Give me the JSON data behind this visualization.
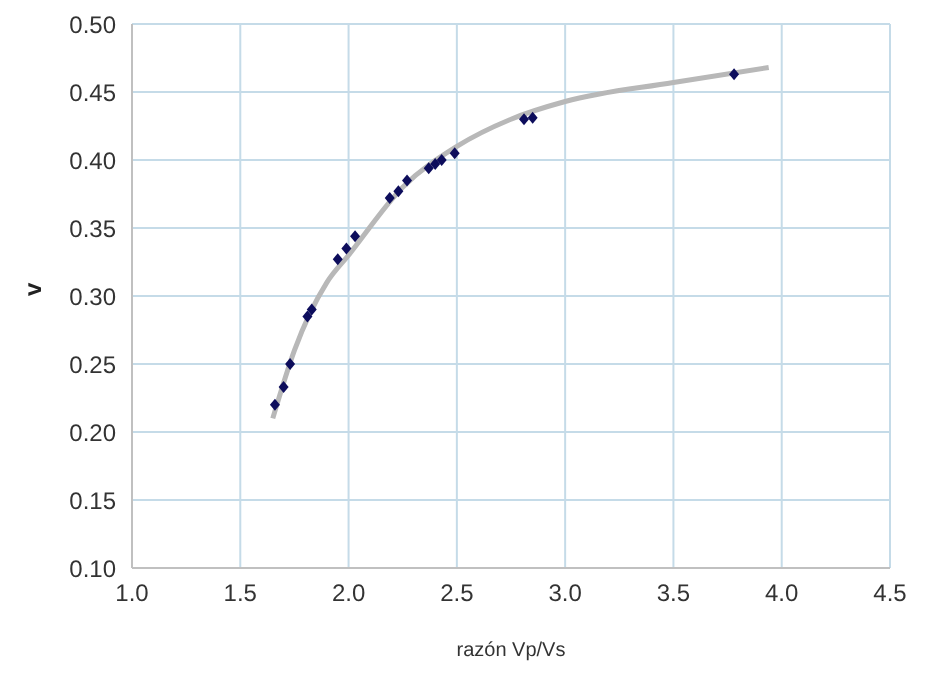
{
  "chart_data": {
    "type": "scatter",
    "xlabel": "razón Vp/Vs",
    "ylabel": "v",
    "xlim": [
      1.0,
      4.5
    ],
    "xticks": [
      {
        "value": 1.0,
        "label": "1.0"
      },
      {
        "value": 1.5,
        "label": "1.5"
      },
      {
        "value": 2.0,
        "label": "2.0"
      },
      {
        "value": 2.5,
        "label": "2.5"
      },
      {
        "value": 3.0,
        "label": "3.0"
      },
      {
        "value": 3.5,
        "label": "3.5"
      },
      {
        "value": 4.0,
        "label": "4.0"
      },
      {
        "value": 4.5,
        "label": "4.5"
      }
    ],
    "ylim": [
      0.1,
      0.5
    ],
    "yticks": [
      {
        "value": 0.1,
        "label": "0.10"
      },
      {
        "value": 0.15,
        "label": "0.15"
      },
      {
        "value": 0.2,
        "label": "0.20"
      },
      {
        "value": 0.25,
        "label": "0.25"
      },
      {
        "value": 0.3,
        "label": "0.30"
      },
      {
        "value": 0.35,
        "label": "0.35"
      },
      {
        "value": 0.4,
        "label": "0.40"
      },
      {
        "value": 0.45,
        "label": "0.45"
      },
      {
        "value": 0.5,
        "label": "0.50"
      }
    ],
    "grid": true,
    "marker": "diamond",
    "series": [
      {
        "color": "#0d0d5c",
        "x": [
          1.66,
          1.7,
          1.73,
          1.81,
          1.83,
          1.95,
          1.99,
          2.03,
          2.19,
          2.23,
          2.27,
          2.37,
          2.4,
          2.43,
          2.49,
          2.81,
          2.85,
          3.78
        ],
        "values": [
          0.22,
          0.233,
          0.25,
          0.285,
          0.29,
          0.327,
          0.335,
          0.344,
          0.372,
          0.377,
          0.385,
          0.394,
          0.397,
          0.4,
          0.405,
          0.43,
          0.431,
          0.463
        ]
      },
      {
        "type": "line",
        "color": "#b8b8b8",
        "marker": "none",
        "x": [
          1.65,
          1.75,
          1.9,
          2.0,
          2.25,
          2.5,
          2.75,
          3.0,
          3.5,
          3.94
        ],
        "values": [
          0.21,
          0.26,
          0.31,
          0.33,
          0.38,
          0.41,
          0.43,
          0.443,
          0.457,
          0.468
        ]
      }
    ]
  }
}
